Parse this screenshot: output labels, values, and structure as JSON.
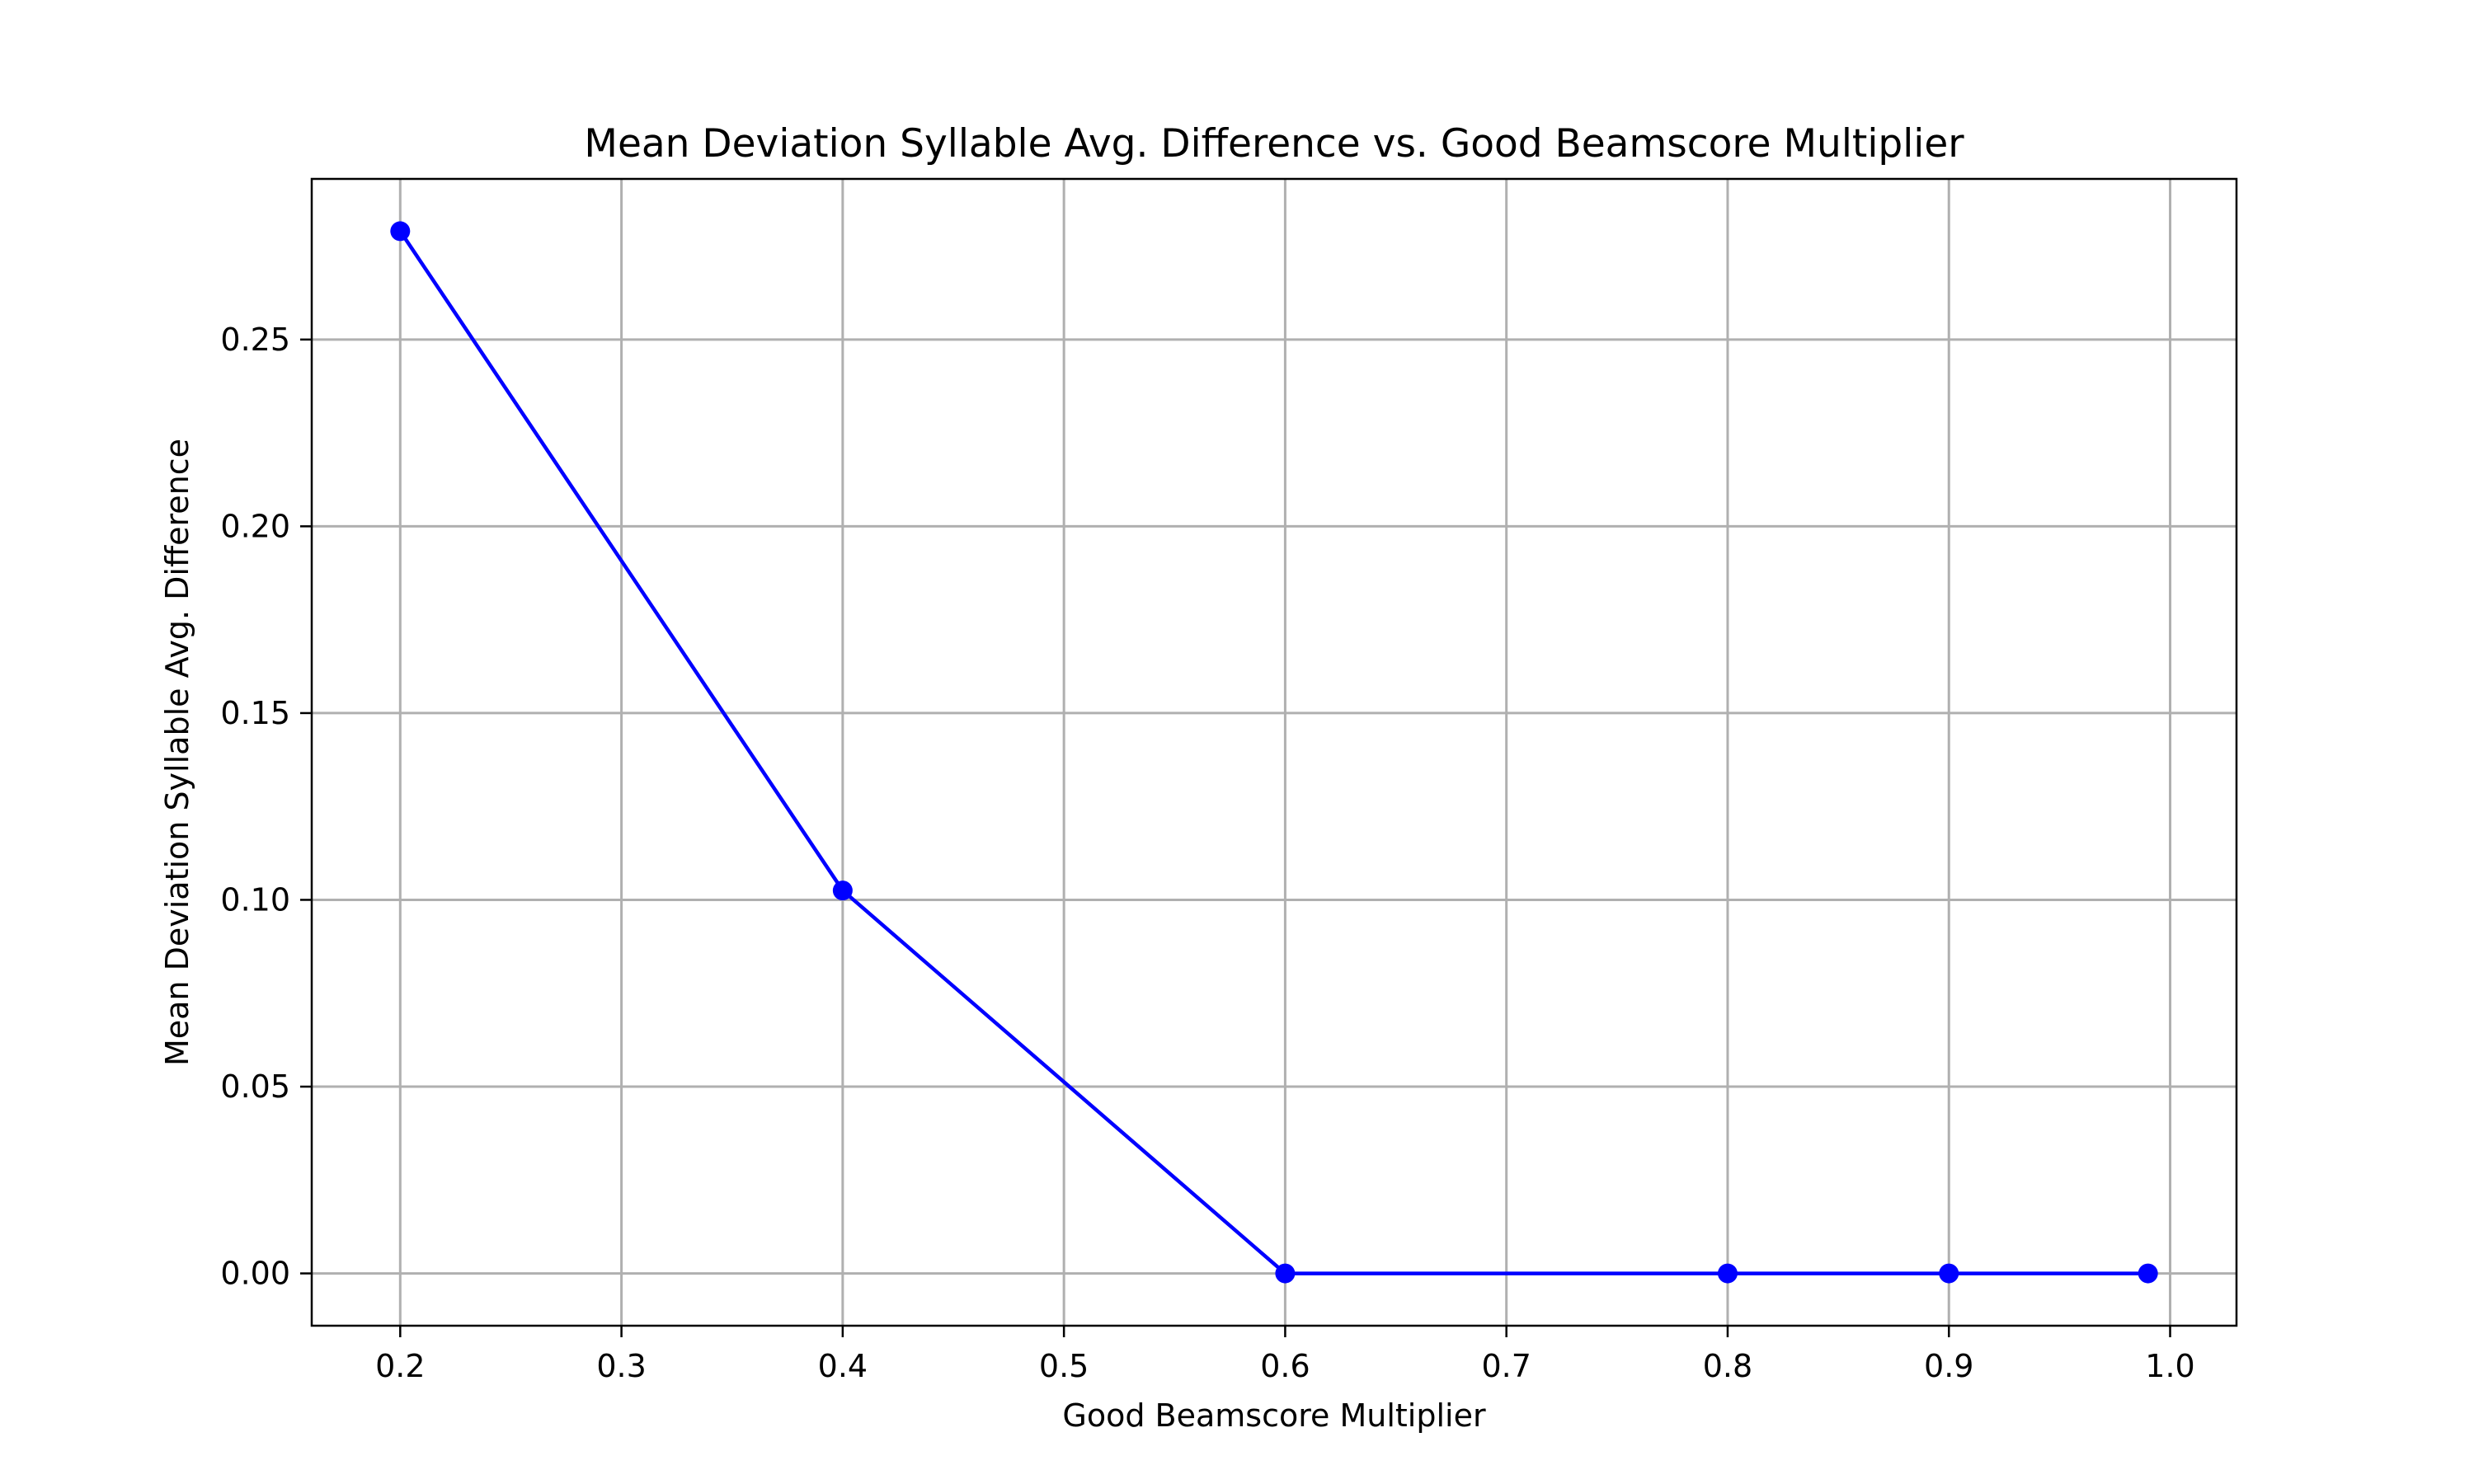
{
  "chart_data": {
    "type": "line",
    "title": "Mean Deviation Syllable Avg. Difference vs. Good Beamscore Multiplier",
    "xlabel": "Good Beamscore Multiplier",
    "ylabel": "Mean Deviation Syllable Avg. Difference",
    "xlim": [
      0.16,
      1.03
    ],
    "ylim": [
      -0.014,
      0.293
    ],
    "xticks": [
      0.2,
      0.3,
      0.4,
      0.5,
      0.6,
      0.7,
      0.8,
      0.9,
      1.0
    ],
    "xtick_labels": [
      "0.2",
      "0.3",
      "0.4",
      "0.5",
      "0.6",
      "0.7",
      "0.8",
      "0.9",
      "1.0"
    ],
    "yticks": [
      0.0,
      0.05,
      0.1,
      0.15,
      0.2,
      0.25
    ],
    "ytick_labels": [
      "0.00",
      "0.05",
      "0.10",
      "0.15",
      "0.20",
      "0.25"
    ],
    "grid": true,
    "legend": "none",
    "series": [
      {
        "color": "#0000ff",
        "marker": "circle",
        "x": [
          0.2,
          0.4,
          0.6,
          0.8,
          0.9,
          0.99
        ],
        "y": [
          0.279,
          0.1025,
          0.0,
          0.0,
          0.0,
          0.0
        ]
      }
    ]
  }
}
